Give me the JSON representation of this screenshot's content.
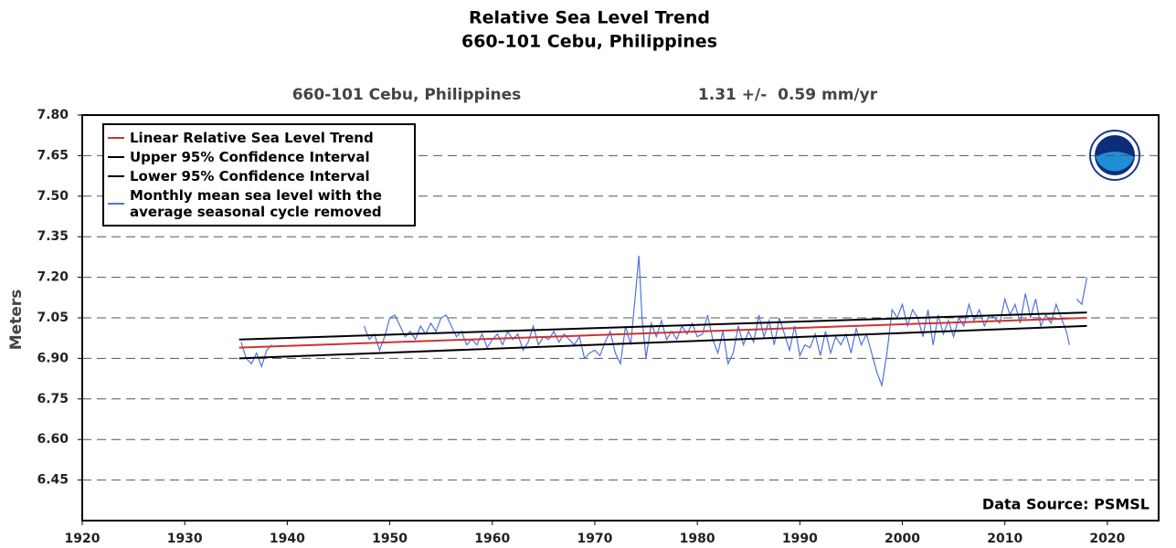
{
  "chart_data": {
    "type": "line",
    "title": "Relative Sea Level Trend",
    "subtitle": "660-101 Cebu, Philippines",
    "station": "660-101 Cebu, Philippines",
    "trend_text": "1.31 +/-  0.59 mm/yr",
    "ylabel": "Meters",
    "annotation": "Data Source: PSMSL",
    "xlim": [
      1920,
      2025
    ],
    "xticks": [
      1920,
      1930,
      1940,
      1950,
      1960,
      1970,
      1980,
      1990,
      2000,
      2010,
      2020
    ],
    "ylim": [
      6.3,
      7.8
    ],
    "yticks": [
      6.45,
      {
        "value": 6.6,
        "label": "6.60"
      },
      {
        "value": 6.75,
        "label": "6.75"
      },
      {
        "value": 6.9,
        "label": "6.90"
      },
      7.05,
      {
        "value": 7.2,
        "label": "7.20"
      },
      7.35,
      {
        "value": 7.5,
        "label": "7.50"
      },
      7.65,
      {
        "value": 7.8,
        "label": "7.80"
      }
    ],
    "grid": true,
    "legend": "upper left",
    "series": [
      {
        "name": "Linear Relative Sea Level Trend",
        "color": "#cc3333",
        "x": [
          1935.3,
          2018
        ],
        "values": [
          6.94,
          7.05
        ]
      },
      {
        "name": "Upper 95% Confidence Interval",
        "color": "#000000",
        "x": [
          1935.3,
          2018
        ],
        "values": [
          6.97,
          7.07
        ]
      },
      {
        "name": "Lower 95% Confidence Interval",
        "color": "#000000",
        "x": [
          1935.3,
          2018
        ],
        "values": [
          6.9,
          7.02
        ]
      },
      {
        "name": "Monthly mean sea level with the average seasonal cycle removed",
        "color": "#4f74d9",
        "x": [
          1935.5,
          1936,
          1936.5,
          1937,
          1937.5,
          1938,
          1938.5,
          1943,
          1947.5,
          1948,
          1948.5,
          1949,
          1949.5,
          1950,
          1950.5,
          1951,
          1951.5,
          1952,
          1952.5,
          1953,
          1953.5,
          1954,
          1954.5,
          1955,
          1955.5,
          1956,
          1956.5,
          1957,
          1957.5,
          1958,
          1958.5,
          1959,
          1959.5,
          1960,
          1960.5,
          1961,
          1961.5,
          1962,
          1962.5,
          1963,
          1963.5,
          1964,
          1964.5,
          1965,
          1965.5,
          1966,
          1966.5,
          1967,
          1967.5,
          1968,
          1968.5,
          1969,
          1969.5,
          1970,
          1970.5,
          1971,
          1971.5,
          1972,
          1972.5,
          1973,
          1973.5,
          1974,
          1974.3,
          1974.6,
          1975,
          1975.5,
          1976,
          1976.5,
          1977,
          1977.5,
          1978,
          1978.5,
          1979,
          1979.5,
          1980,
          1980.5,
          1981,
          1981.5,
          1982,
          1982.5,
          1983,
          1983.5,
          1984,
          1984.5,
          1985,
          1985.5,
          1986,
          1986.5,
          1987,
          1987.5,
          1988,
          1988.5,
          1989,
          1989.5,
          1990,
          1990.5,
          1991,
          1991.5,
          1992,
          1992.5,
          1993,
          1993.5,
          1994,
          1994.5,
          1995,
          1995.5,
          1996,
          1996.5,
          1997,
          1997.5,
          1998,
          1998.5,
          1999,
          1999.5,
          2000,
          2000.5,
          2001,
          2001.5,
          2002,
          2002.5,
          2003,
          2003.5,
          2004,
          2004.5,
          2005,
          2005.5,
          2006,
          2006.5,
          2007,
          2007.5,
          2008,
          2008.5,
          2009,
          2009.5,
          2010,
          2010.5,
          2011,
          2011.5,
          2012,
          2012.5,
          2013,
          2013.5,
          2014,
          2014.5,
          2015,
          2015.5,
          2016,
          2016.3,
          2016.7,
          2017,
          2017.5,
          2018
        ],
        "values": [
          6.96,
          6.9,
          6.88,
          6.92,
          6.87,
          6.93,
          6.95,
          null,
          7.02,
          6.97,
          6.99,
          6.93,
          6.98,
          7.05,
          7.06,
          7.02,
          6.98,
          7.0,
          6.97,
          7.02,
          6.99,
          7.03,
          7.0,
          7.05,
          7.06,
          7.02,
          6.98,
          7.0,
          6.95,
          6.97,
          6.95,
          6.99,
          6.94,
          6.97,
          6.99,
          6.95,
          7.0,
          6.97,
          6.99,
          6.93,
          6.96,
          7.02,
          6.95,
          6.98,
          6.97,
          7.0,
          6.96,
          6.99,
          6.97,
          6.95,
          6.98,
          6.9,
          6.92,
          6.93,
          6.91,
          6.96,
          7.0,
          6.92,
          6.88,
          7.02,
          6.95,
          7.15,
          7.28,
          7.05,
          6.9,
          7.03,
          6.98,
          7.04,
          6.97,
          7.0,
          6.97,
          7.02,
          6.99,
          7.03,
          6.98,
          6.99,
          7.06,
          6.97,
          6.92,
          7.0,
          6.88,
          6.92,
          7.02,
          6.95,
          7.0,
          6.96,
          7.06,
          6.98,
          7.04,
          6.95,
          7.05,
          6.99,
          6.93,
          7.02,
          6.91,
          6.95,
          6.94,
          6.99,
          6.91,
          7.0,
          6.92,
          6.98,
          6.95,
          6.99,
          6.92,
          7.01,
          6.95,
          6.99,
          6.92,
          6.85,
          6.8,
          6.92,
          7.08,
          7.05,
          7.1,
          7.02,
          7.08,
          7.05,
          6.98,
          7.08,
          6.95,
          7.06,
          6.99,
          7.04,
          6.98,
          7.05,
          7.02,
          7.1,
          7.04,
          7.08,
          7.02,
          7.06,
          7.05,
          7.03,
          7.12,
          7.06,
          7.1,
          7.03,
          7.14,
          7.05,
          7.12,
          7.02,
          7.06,
          7.03,
          7.1,
          7.05,
          7.0,
          6.95,
          null,
          7.12,
          7.1,
          7.2
        ]
      }
    ]
  }
}
